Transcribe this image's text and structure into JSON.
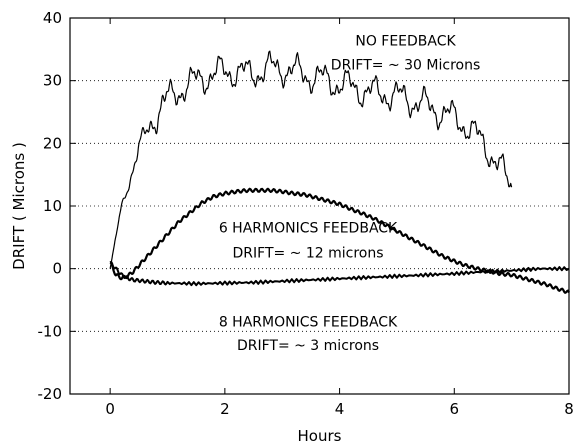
{
  "chart_data": {
    "type": "line",
    "title": "",
    "xlabel": "Hours",
    "ylabel": "DRIFT  ( Microns )",
    "xlim": [
      -0.7,
      8
    ],
    "ylim": [
      -20,
      40
    ],
    "xticks": [
      0,
      2,
      4,
      6,
      8
    ],
    "yticks": [
      -20,
      -10,
      0,
      10,
      20,
      30,
      40
    ],
    "grid": "dotted horizontal lines",
    "series": [
      {
        "name": "NO FEEDBACK",
        "x": [
          0,
          0.1,
          0.2,
          0.3,
          0.4,
          0.5,
          0.6,
          0.7,
          0.8,
          0.9,
          1.0,
          1.2,
          1.4,
          1.6,
          1.8,
          2.0,
          2.2,
          2.4,
          2.6,
          2.8,
          3.0,
          3.2,
          3.4,
          3.6,
          3.8,
          4.0,
          4.2,
          4.4,
          4.6,
          4.8,
          5.0,
          5.2,
          5.4,
          5.6,
          5.8,
          6.0,
          6.2,
          6.4,
          6.6,
          6.8,
          7.0
        ],
        "y": [
          0,
          5,
          10,
          13,
          16,
          19,
          21,
          23,
          24.5,
          26,
          27,
          28.5,
          29.5,
          30.5,
          31,
          31.5,
          31.5,
          31,
          31.5,
          32,
          32,
          31.5,
          31,
          30.5,
          30,
          29.5,
          29,
          28.5,
          28,
          28,
          27.5,
          27,
          26.5,
          25.5,
          25,
          24,
          23,
          21,
          19,
          16,
          13
        ]
      },
      {
        "name": "6 HARMONICS FEEDBACK",
        "x": [
          0,
          0.1,
          0.2,
          0.3,
          0.4,
          0.5,
          0.6,
          0.7,
          0.8,
          0.9,
          1.0,
          1.2,
          1.4,
          1.6,
          1.8,
          2.0,
          2.2,
          2.4,
          2.6,
          2.8,
          3.0,
          3.2,
          3.4,
          3.6,
          3.8,
          4.0,
          4.2,
          4.4,
          4.6,
          4.8,
          5.0,
          5.2,
          5.4,
          5.6,
          5.8,
          6.0,
          6.2,
          6.4,
          6.6,
          6.8,
          7.0,
          7.2,
          7.4,
          7.6,
          7.8,
          8.0
        ],
        "y": [
          1,
          -1,
          -1.5,
          -1.2,
          -0.5,
          0.5,
          1.5,
          2.5,
          3.5,
          4.5,
          5.5,
          7.5,
          9,
          10.5,
          11.5,
          12,
          12.3,
          12.5,
          12.5,
          12.5,
          12.3,
          12,
          11.8,
          11.3,
          10.8,
          10.3,
          9.5,
          8.8,
          8,
          7,
          6,
          5,
          4,
          3,
          2,
          1.2,
          0.5,
          0,
          -0.4,
          -0.8,
          -1,
          -1.5,
          -2,
          -2.5,
          -3.2,
          -3.8
        ]
      },
      {
        "name": "8 HARMONICS FEEDBACK",
        "x": [
          0,
          0.1,
          0.2,
          0.3,
          0.4,
          0.6,
          0.8,
          1.0,
          1.5,
          2.0,
          2.5,
          3.0,
          3.5,
          4.0,
          4.5,
          5.0,
          5.5,
          6.0,
          6.5,
          7.0,
          7.5,
          8.0
        ],
        "y": [
          1,
          0,
          -1,
          -1.5,
          -1.8,
          -2,
          -2.2,
          -2.3,
          -2.4,
          -2.3,
          -2.2,
          -2,
          -1.8,
          -1.6,
          -1.4,
          -1.2,
          -1,
          -0.8,
          -0.5,
          -0.3,
          0,
          0
        ]
      }
    ],
    "annotations": [
      {
        "text": "NO FEEDBACK",
        "x": 5.15,
        "y": 36.4
      },
      {
        "text": "DRIFT= ~ 30 Microns",
        "x": 5.15,
        "y": 32.6
      },
      {
        "text": "6 HARMONICS FEEDBACK",
        "x": 3.45,
        "y": 6.6
      },
      {
        "text": "DRIFT= ~ 12 microns",
        "x": 3.45,
        "y": 2.6
      },
      {
        "text": "8 HARMONICS FEEDBACK",
        "x": 3.45,
        "y": -8.4
      },
      {
        "text": "DRIFT= ~ 3 microns",
        "x": 3.45,
        "y": -12.2
      }
    ]
  }
}
